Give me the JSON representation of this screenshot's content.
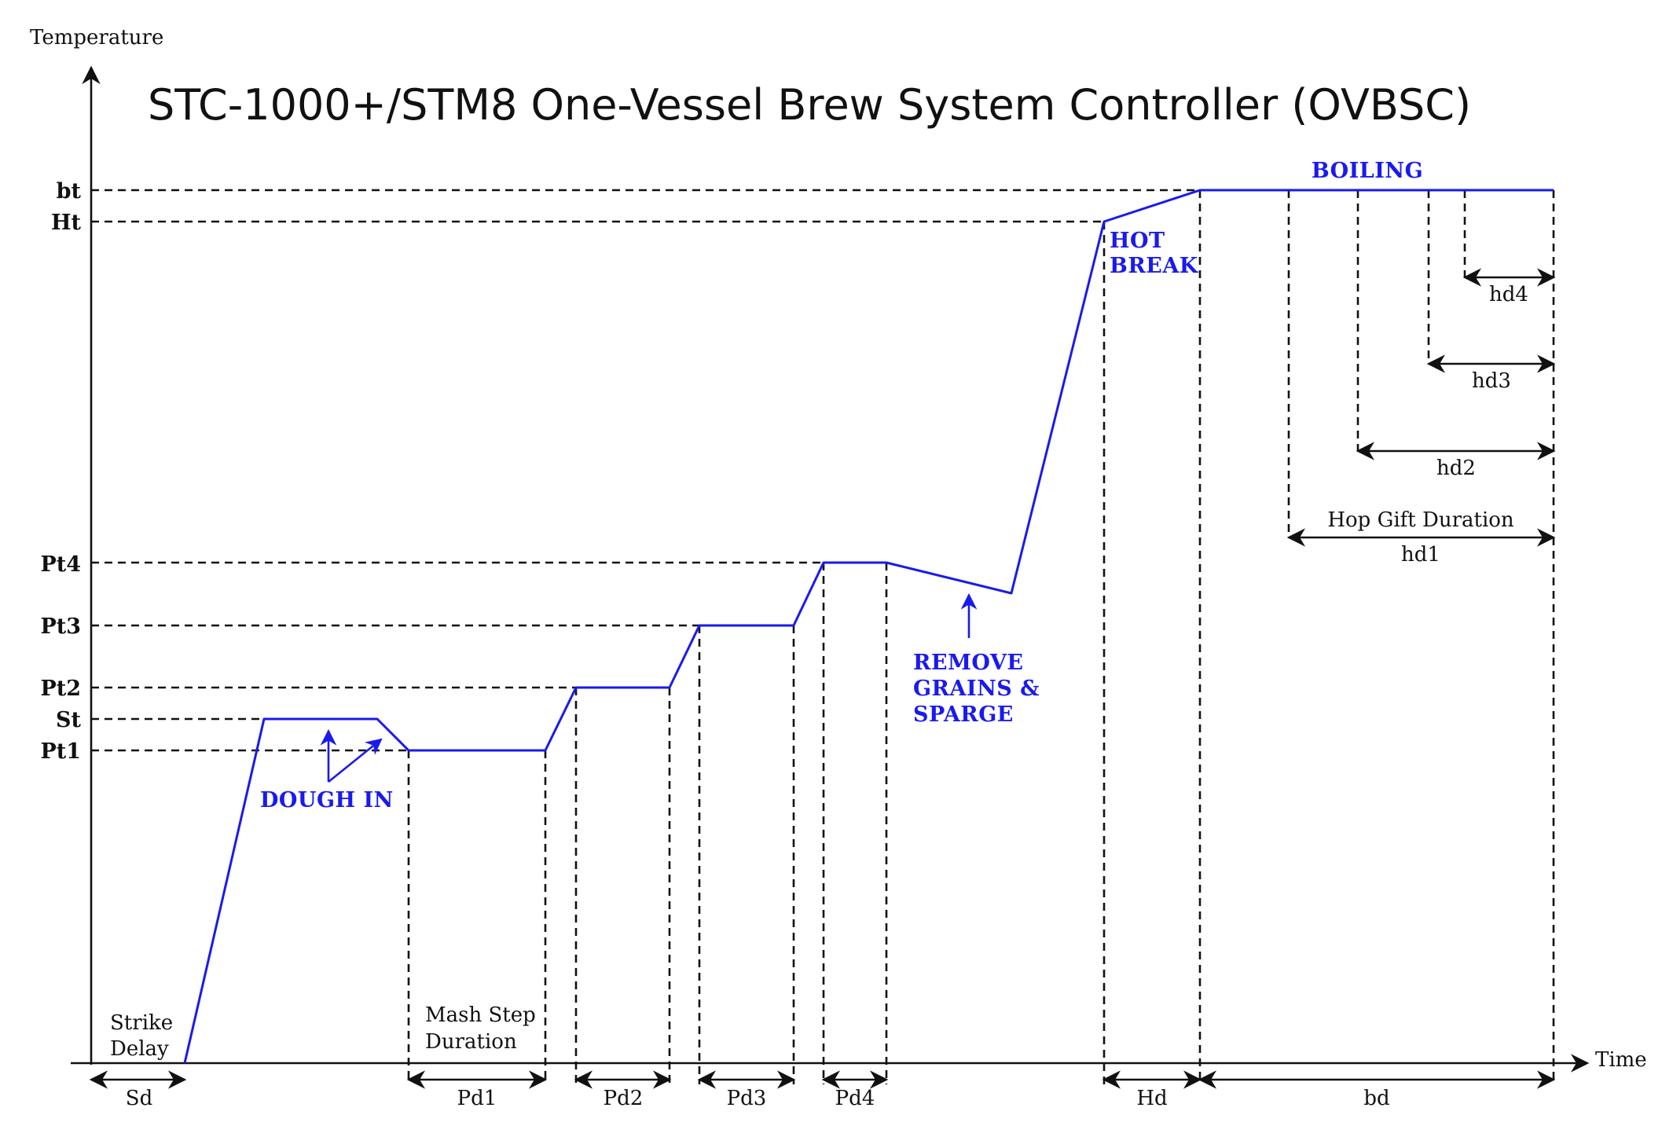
{
  "title": "STC-1000+/STM8 One-Vessel Brew System Controller (OVBSC)",
  "axes": {
    "y_label": "Temperature",
    "x_label": "Time"
  },
  "temperature_levels": [
    "bt",
    "Ht",
    "Pt4",
    "Pt3",
    "Pt2",
    "St",
    "Pt1"
  ],
  "durations": [
    "Sd",
    "Pd1",
    "Pd2",
    "Pd3",
    "Pd4",
    "Hd",
    "bd"
  ],
  "hop_durations": [
    "hd4",
    "hd3",
    "hd2",
    "hd1"
  ],
  "annotations": {
    "strike_delay": [
      "Strike",
      "Delay"
    ],
    "mash_step": [
      "Mash Step",
      "Duration"
    ],
    "hop_gift": "Hop Gift Duration",
    "dough_in": "DOUGH IN",
    "remove_grains": [
      "REMOVE",
      "GRAINS &",
      "SPARGE"
    ],
    "hot_break": [
      "HOT",
      "BREAK"
    ],
    "boiling": "BOILING"
  },
  "colors": {
    "profile": "#1a1aee",
    "lines": "#111111"
  }
}
